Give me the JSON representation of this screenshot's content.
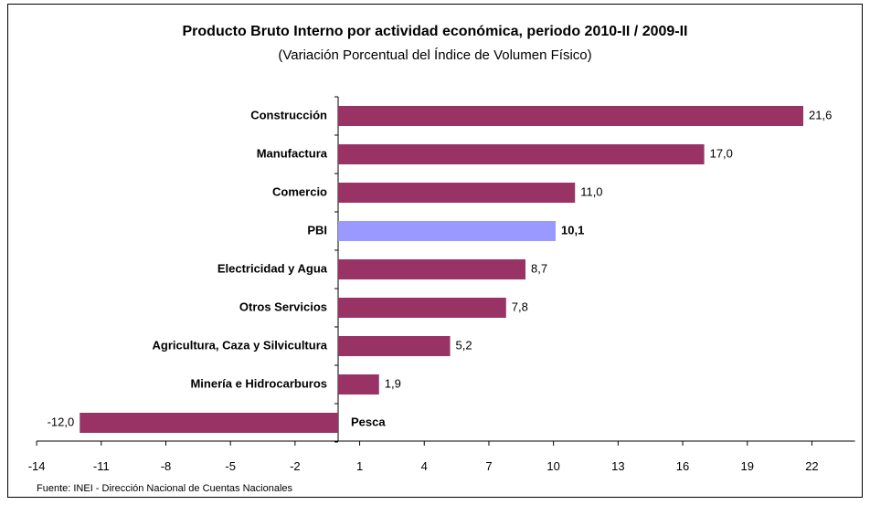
{
  "chart_data": {
    "type": "bar",
    "orientation": "horizontal",
    "title": "Producto Bruto Interno por actividad económica, periodo 2010-II / 2009-II",
    "subtitle": "(Variación Porcentual del Índice de Volumen Físico)",
    "source": "Fuente: INEI - Dirección  Nacional de Cuentas  Nacionales",
    "categories": [
      "Construcción",
      "Manufactura",
      "Comercio",
      "PBI",
      "Electricidad y Agua",
      "Otros Servicios",
      "Agricultura, Caza y Silvicultura",
      "Minería e Hidrocarburos",
      "Pesca"
    ],
    "values": [
      21.6,
      17.0,
      11.0,
      10.1,
      8.7,
      7.8,
      5.2,
      1.9,
      -12.0
    ],
    "value_labels": [
      "21,6",
      "17,0",
      "11,0",
      "10,1",
      "8,7",
      "7,8",
      "5,2",
      "1,9",
      "-12,0"
    ],
    "highlight": "PBI",
    "xlim": [
      -14,
      24
    ],
    "xticks": [
      -14,
      -11,
      -8,
      -5,
      -2,
      1,
      4,
      7,
      10,
      13,
      16,
      19,
      22
    ],
    "grid": false,
    "colors": {
      "bar": "#993366",
      "highlight": "#9999ff"
    }
  }
}
